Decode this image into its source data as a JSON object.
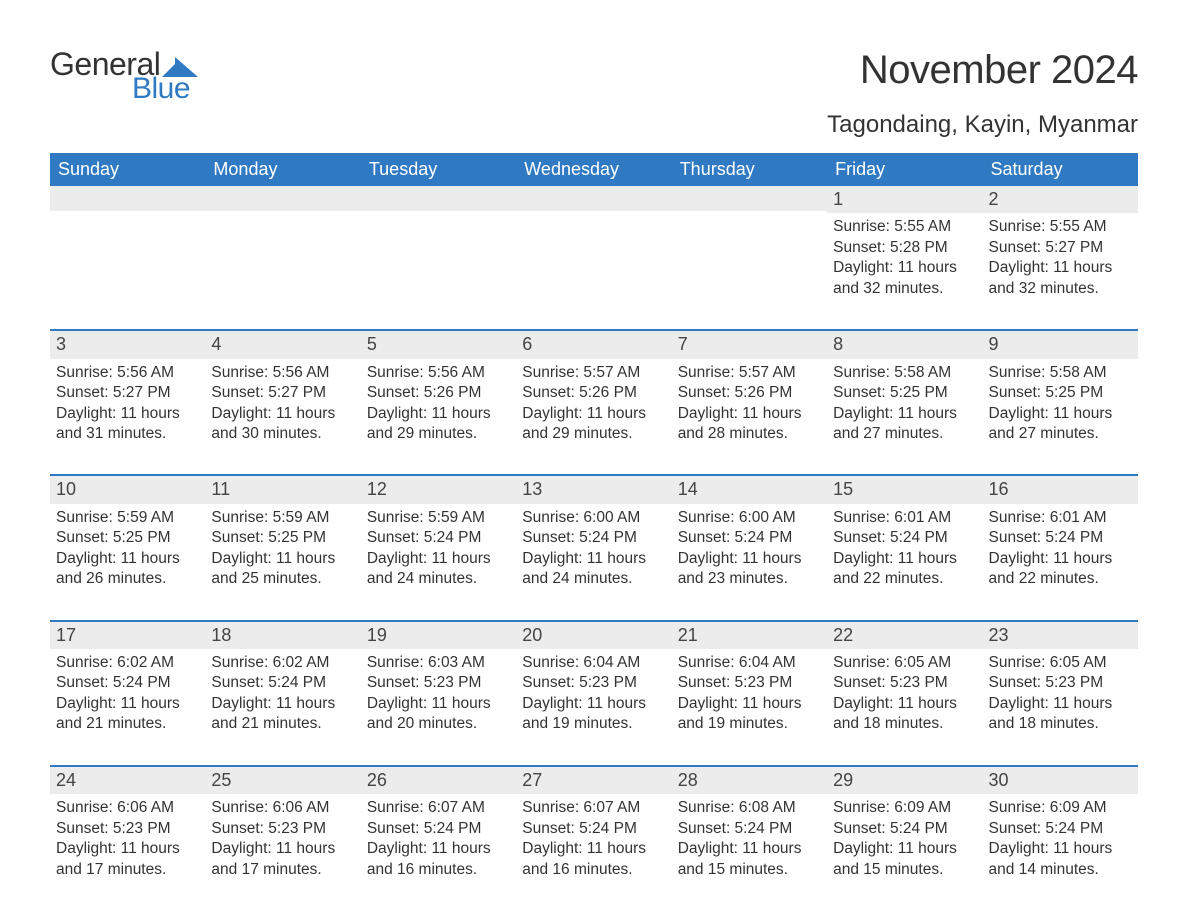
{
  "logo": {
    "text_general": "General",
    "text_blue": "Blue",
    "mark_color": "#2f7ac2"
  },
  "title": "November 2024",
  "location": "Tagondaing, Kayin, Myanmar",
  "colors": {
    "header_bg": "#2f7ac2",
    "header_text": "#ffffff",
    "daynum_bg": "#ececec",
    "text": "#333333",
    "rule": "#2f7ac2",
    "page_bg": "#ffffff"
  },
  "typography": {
    "title_fontsize": 40,
    "location_fontsize": 24,
    "dow_fontsize": 18,
    "daynum_fontsize": 18,
    "body_fontsize": 15.5,
    "font_family": "Arial"
  },
  "days_of_week": [
    "Sunday",
    "Monday",
    "Tuesday",
    "Wednesday",
    "Thursday",
    "Friday",
    "Saturday"
  ],
  "weeks": [
    [
      {
        "day": "",
        "sunrise": "",
        "sunset": "",
        "daylight": ""
      },
      {
        "day": "",
        "sunrise": "",
        "sunset": "",
        "daylight": ""
      },
      {
        "day": "",
        "sunrise": "",
        "sunset": "",
        "daylight": ""
      },
      {
        "day": "",
        "sunrise": "",
        "sunset": "",
        "daylight": ""
      },
      {
        "day": "",
        "sunrise": "",
        "sunset": "",
        "daylight": ""
      },
      {
        "day": "1",
        "sunrise": "Sunrise: 5:55 AM",
        "sunset": "Sunset: 5:28 PM",
        "daylight": "Daylight: 11 hours and 32 minutes."
      },
      {
        "day": "2",
        "sunrise": "Sunrise: 5:55 AM",
        "sunset": "Sunset: 5:27 PM",
        "daylight": "Daylight: 11 hours and 32 minutes."
      }
    ],
    [
      {
        "day": "3",
        "sunrise": "Sunrise: 5:56 AM",
        "sunset": "Sunset: 5:27 PM",
        "daylight": "Daylight: 11 hours and 31 minutes."
      },
      {
        "day": "4",
        "sunrise": "Sunrise: 5:56 AM",
        "sunset": "Sunset: 5:27 PM",
        "daylight": "Daylight: 11 hours and 30 minutes."
      },
      {
        "day": "5",
        "sunrise": "Sunrise: 5:56 AM",
        "sunset": "Sunset: 5:26 PM",
        "daylight": "Daylight: 11 hours and 29 minutes."
      },
      {
        "day": "6",
        "sunrise": "Sunrise: 5:57 AM",
        "sunset": "Sunset: 5:26 PM",
        "daylight": "Daylight: 11 hours and 29 minutes."
      },
      {
        "day": "7",
        "sunrise": "Sunrise: 5:57 AM",
        "sunset": "Sunset: 5:26 PM",
        "daylight": "Daylight: 11 hours and 28 minutes."
      },
      {
        "day": "8",
        "sunrise": "Sunrise: 5:58 AM",
        "sunset": "Sunset: 5:25 PM",
        "daylight": "Daylight: 11 hours and 27 minutes."
      },
      {
        "day": "9",
        "sunrise": "Sunrise: 5:58 AM",
        "sunset": "Sunset: 5:25 PM",
        "daylight": "Daylight: 11 hours and 27 minutes."
      }
    ],
    [
      {
        "day": "10",
        "sunrise": "Sunrise: 5:59 AM",
        "sunset": "Sunset: 5:25 PM",
        "daylight": "Daylight: 11 hours and 26 minutes."
      },
      {
        "day": "11",
        "sunrise": "Sunrise: 5:59 AM",
        "sunset": "Sunset: 5:25 PM",
        "daylight": "Daylight: 11 hours and 25 minutes."
      },
      {
        "day": "12",
        "sunrise": "Sunrise: 5:59 AM",
        "sunset": "Sunset: 5:24 PM",
        "daylight": "Daylight: 11 hours and 24 minutes."
      },
      {
        "day": "13",
        "sunrise": "Sunrise: 6:00 AM",
        "sunset": "Sunset: 5:24 PM",
        "daylight": "Daylight: 11 hours and 24 minutes."
      },
      {
        "day": "14",
        "sunrise": "Sunrise: 6:00 AM",
        "sunset": "Sunset: 5:24 PM",
        "daylight": "Daylight: 11 hours and 23 minutes."
      },
      {
        "day": "15",
        "sunrise": "Sunrise: 6:01 AM",
        "sunset": "Sunset: 5:24 PM",
        "daylight": "Daylight: 11 hours and 22 minutes."
      },
      {
        "day": "16",
        "sunrise": "Sunrise: 6:01 AM",
        "sunset": "Sunset: 5:24 PM",
        "daylight": "Daylight: 11 hours and 22 minutes."
      }
    ],
    [
      {
        "day": "17",
        "sunrise": "Sunrise: 6:02 AM",
        "sunset": "Sunset: 5:24 PM",
        "daylight": "Daylight: 11 hours and 21 minutes."
      },
      {
        "day": "18",
        "sunrise": "Sunrise: 6:02 AM",
        "sunset": "Sunset: 5:24 PM",
        "daylight": "Daylight: 11 hours and 21 minutes."
      },
      {
        "day": "19",
        "sunrise": "Sunrise: 6:03 AM",
        "sunset": "Sunset: 5:23 PM",
        "daylight": "Daylight: 11 hours and 20 minutes."
      },
      {
        "day": "20",
        "sunrise": "Sunrise: 6:04 AM",
        "sunset": "Sunset: 5:23 PM",
        "daylight": "Daylight: 11 hours and 19 minutes."
      },
      {
        "day": "21",
        "sunrise": "Sunrise: 6:04 AM",
        "sunset": "Sunset: 5:23 PM",
        "daylight": "Daylight: 11 hours and 19 minutes."
      },
      {
        "day": "22",
        "sunrise": "Sunrise: 6:05 AM",
        "sunset": "Sunset: 5:23 PM",
        "daylight": "Daylight: 11 hours and 18 minutes."
      },
      {
        "day": "23",
        "sunrise": "Sunrise: 6:05 AM",
        "sunset": "Sunset: 5:23 PM",
        "daylight": "Daylight: 11 hours and 18 minutes."
      }
    ],
    [
      {
        "day": "24",
        "sunrise": "Sunrise: 6:06 AM",
        "sunset": "Sunset: 5:23 PM",
        "daylight": "Daylight: 11 hours and 17 minutes."
      },
      {
        "day": "25",
        "sunrise": "Sunrise: 6:06 AM",
        "sunset": "Sunset: 5:23 PM",
        "daylight": "Daylight: 11 hours and 17 minutes."
      },
      {
        "day": "26",
        "sunrise": "Sunrise: 6:07 AM",
        "sunset": "Sunset: 5:24 PM",
        "daylight": "Daylight: 11 hours and 16 minutes."
      },
      {
        "day": "27",
        "sunrise": "Sunrise: 6:07 AM",
        "sunset": "Sunset: 5:24 PM",
        "daylight": "Daylight: 11 hours and 16 minutes."
      },
      {
        "day": "28",
        "sunrise": "Sunrise: 6:08 AM",
        "sunset": "Sunset: 5:24 PM",
        "daylight": "Daylight: 11 hours and 15 minutes."
      },
      {
        "day": "29",
        "sunrise": "Sunrise: 6:09 AM",
        "sunset": "Sunset: 5:24 PM",
        "daylight": "Daylight: 11 hours and 15 minutes."
      },
      {
        "day": "30",
        "sunrise": "Sunrise: 6:09 AM",
        "sunset": "Sunset: 5:24 PM",
        "daylight": "Daylight: 11 hours and 14 minutes."
      }
    ]
  ]
}
